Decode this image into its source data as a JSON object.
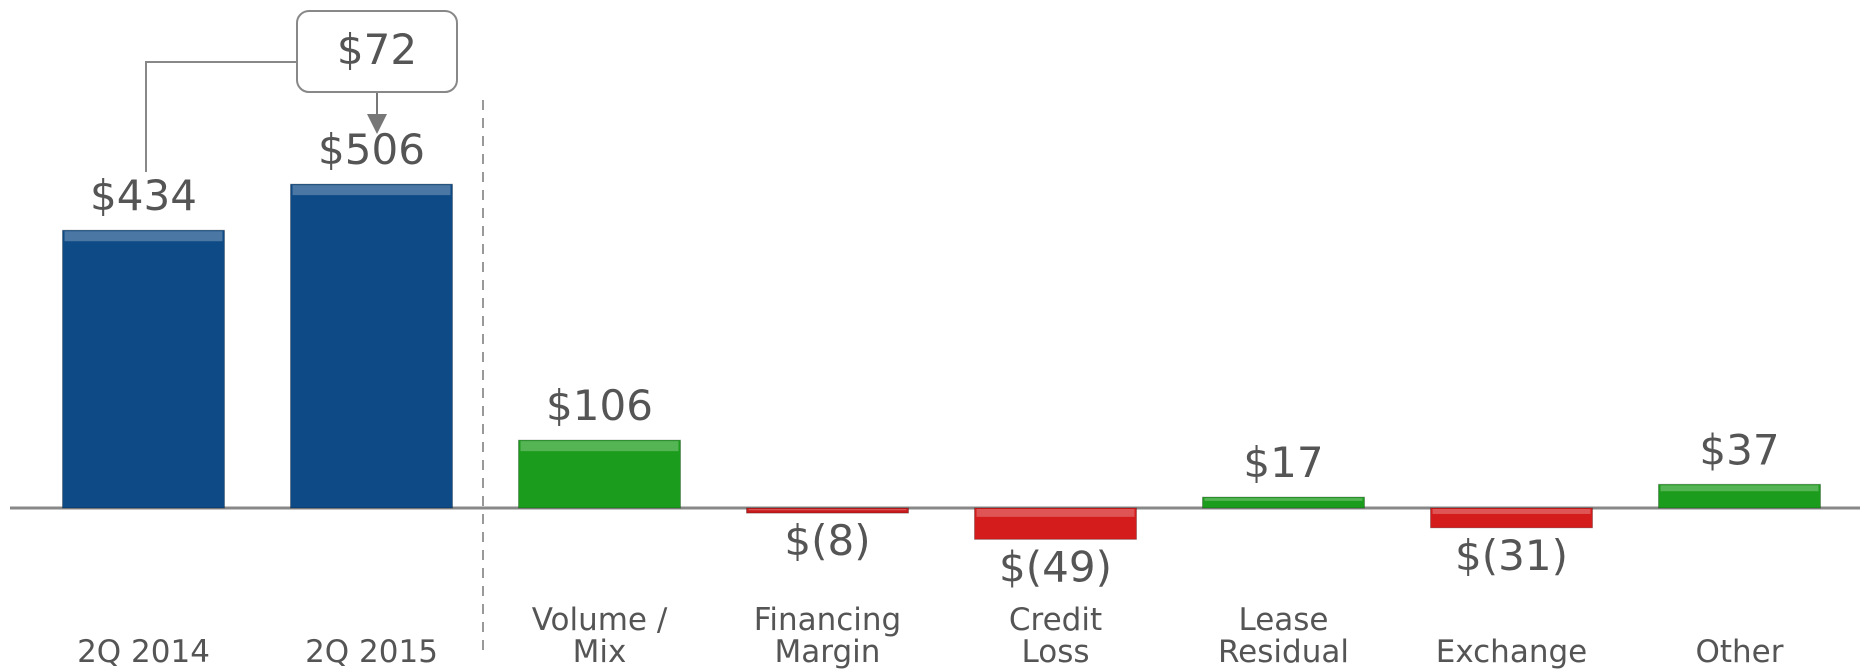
{
  "chart_data": {
    "type": "bar",
    "categories": [
      "2Q 2014",
      "2Q 2015",
      "Volume /\nMix",
      "Financing\nMargin",
      "Credit\nLoss",
      "Lease\nResidual",
      "Exchange",
      "Other"
    ],
    "values": [
      434,
      506,
      106,
      -8,
      -49,
      17,
      -31,
      37
    ],
    "value_labels": [
      "$434",
      "$506",
      "$106",
      "$(8)",
      "$(49)",
      "$17",
      "$(31)",
      "$37"
    ],
    "colors": [
      "#0e4a85",
      "#0e4a85",
      "#1c9c1c",
      "#c81a1a",
      "#d41c1c",
      "#1c9c1c",
      "#d41c1c",
      "#1c9c1c"
    ],
    "annotation": {
      "text": "$72",
      "value": 72
    }
  }
}
